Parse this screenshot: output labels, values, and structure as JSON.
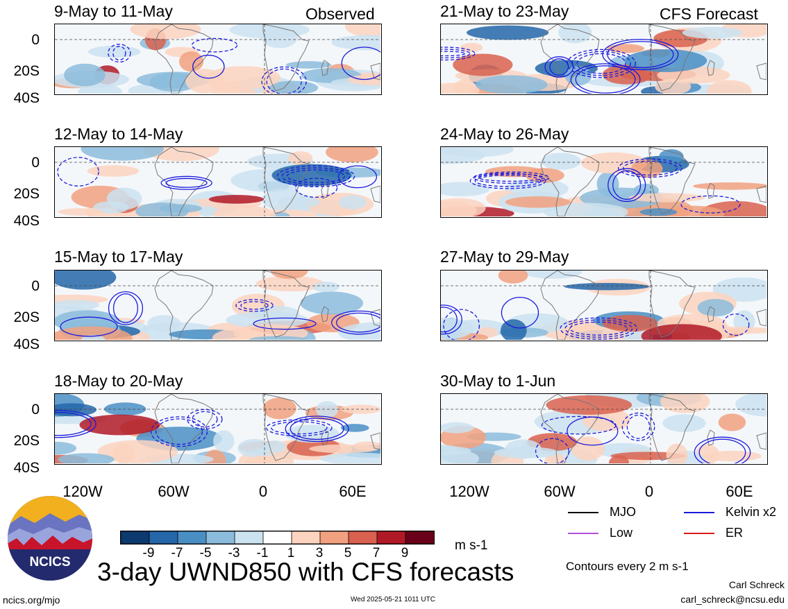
{
  "header": {
    "left_tag": "Observed",
    "right_tag": "CFS Forecast"
  },
  "panels": {
    "left": [
      {
        "title": "9-May to 11-May"
      },
      {
        "title": "12-May to 14-May"
      },
      {
        "title": "15-May to 17-May"
      },
      {
        "title": "18-May to 20-May"
      }
    ],
    "right": [
      {
        "title": "21-May to 23-May"
      },
      {
        "title": "24-May to 26-May"
      },
      {
        "title": "27-May to 29-May"
      },
      {
        "title": "30-May to 1-Jun"
      }
    ]
  },
  "axes": {
    "y_ticks": [
      "0",
      "20S",
      "40S"
    ],
    "x_ticks": [
      "120W",
      "60W",
      "0",
      "60E"
    ]
  },
  "colorbar": {
    "ticks": [
      "-9",
      "-7",
      "-5",
      "-3",
      "-1",
      "1",
      "3",
      "5",
      "7",
      "9"
    ],
    "unit": "m s-1",
    "colors": [
      "#0d3a6e",
      "#2567a9",
      "#4a8fc4",
      "#8cbcdc",
      "#cbe2f0",
      "#ffffff",
      "#fbd3bf",
      "#f1a17f",
      "#d9614f",
      "#b01a27",
      "#6a0019"
    ]
  },
  "legend": {
    "items": [
      {
        "label": "MJO",
        "color": "#000000"
      },
      {
        "label": "Kelvin x2",
        "color": "#1a1adc"
      },
      {
        "label": "Low",
        "color": "#b050d8"
      },
      {
        "label": "ER",
        "color": "#d81a1a"
      }
    ],
    "contours_note": "Contours every 2 m s-1"
  },
  "footer": {
    "main_title": "3-day UWND850 with CFS forecasts",
    "website": "ncics.org/mjo",
    "timestamp": "Wed 2025-05-21 1011 UTC",
    "author": "Carl Schreck",
    "email": "carl_schreck@ncsu.edu",
    "logo_text": "NCICS"
  }
}
